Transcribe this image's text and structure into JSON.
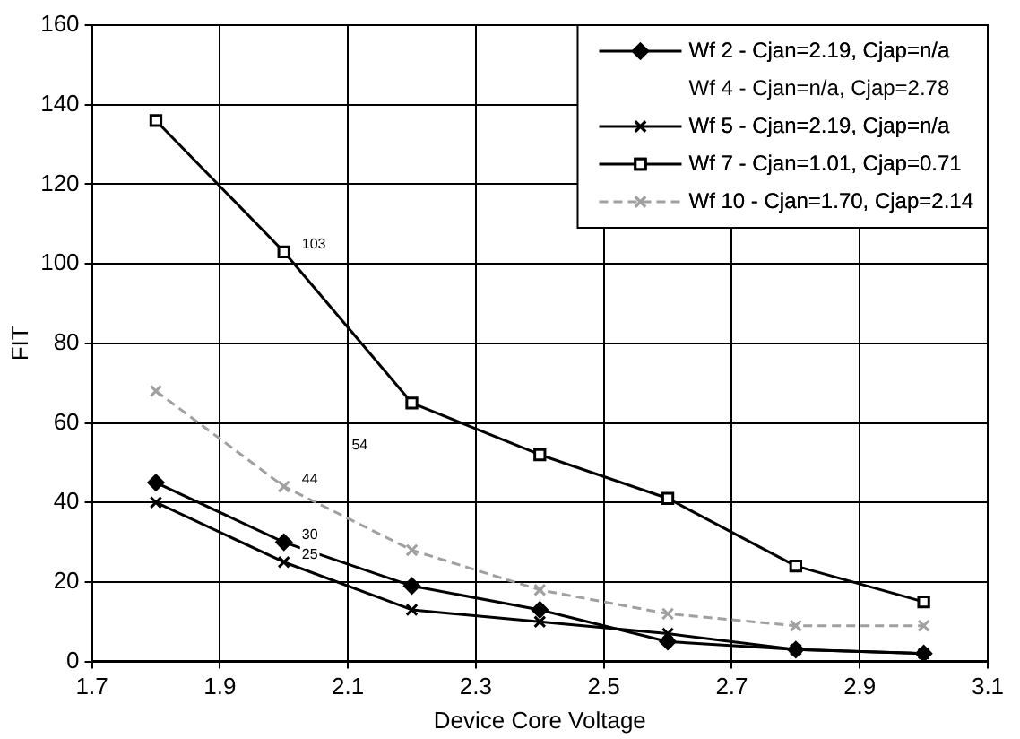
{
  "chart_data": {
    "type": "line",
    "xlabel": "Device Core Voltage",
    "ylabel": "FIT",
    "x": [
      1.8,
      2.0,
      2.2,
      2.4,
      2.6,
      2.8,
      3.0
    ],
    "series": [
      {
        "name": "Wf 2 - Cjan=2.19, Cjap=n/a",
        "color": "#000000",
        "marker": "diamond",
        "values": [
          45,
          30,
          19,
          13,
          5,
          3,
          2
        ],
        "value_labels": [
          null,
          "30",
          null,
          null,
          null,
          null,
          null
        ]
      },
      {
        "name": "Wf 4 - Cjan=n/a, Cjap=2.78",
        "marker": "none",
        "values": [
          null,
          null,
          null,
          null,
          null,
          null,
          null
        ]
      },
      {
        "name": "Wf 5 - Cjan=2.19, Cjap=n/a",
        "color": "#000000",
        "marker": "cross",
        "values": [
          40,
          25,
          13,
          10,
          7,
          3,
          2
        ],
        "value_labels": [
          null,
          "25",
          null,
          null,
          null,
          null,
          null
        ]
      },
      {
        "name": "Wf 7 - Cjan=1.01, Cjap=0.71",
        "color": "#000000",
        "marker": "square",
        "values": [
          136,
          103,
          65,
          52,
          41,
          24,
          15
        ],
        "value_labels": [
          null,
          "103",
          null,
          null,
          null,
          null,
          null
        ]
      },
      {
        "name": "Wf 10 - Cjan=1.70, Cjap=2.14",
        "color": "#a0a0a0",
        "marker": "cross",
        "line_style": "dashed",
        "values": [
          68,
          44,
          28,
          18,
          12,
          9,
          9
        ],
        "value_labels": [
          null,
          "44",
          null,
          null,
          null,
          null,
          null
        ]
      }
    ],
    "annotations": [
      "54"
    ],
    "xlim": [
      1.7,
      3.1
    ],
    "xticks": [
      1.7,
      1.9,
      2.1,
      2.3,
      2.5,
      2.7,
      2.9,
      3.1
    ],
    "ylim": [
      0,
      160
    ],
    "yticks": [
      0,
      20,
      40,
      60,
      80,
      100,
      120,
      140,
      160
    ],
    "grid": true,
    "legend": "top right"
  }
}
